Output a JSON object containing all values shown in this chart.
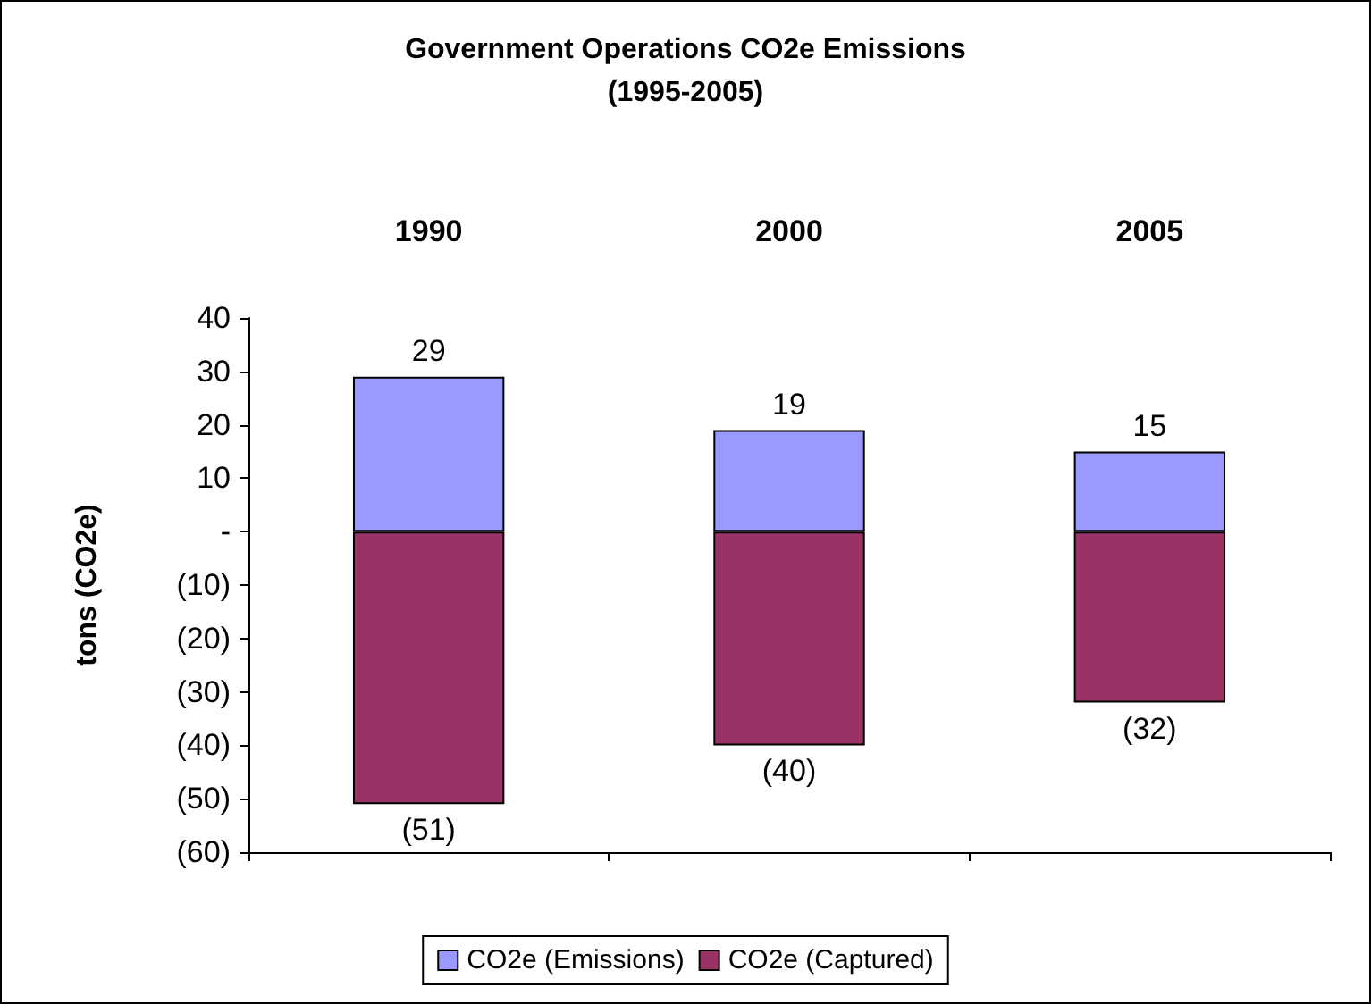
{
  "chart_data": {
    "type": "bar",
    "title": "Government Operations CO2e Emissions",
    "subtitle": "(1995-2005)",
    "ylabel": "tons (CO2e)",
    "categories": [
      "1990",
      "2000",
      "2005"
    ],
    "stacked": true,
    "series": [
      {
        "name": "CO2e (Emissions)",
        "color": "#9999ff",
        "values": [
          29,
          19,
          15
        ],
        "value_labels": [
          "29",
          "19",
          "15"
        ]
      },
      {
        "name": "CO2e (Captured)",
        "color": "#993366",
        "values": [
          -51,
          -40,
          -32
        ],
        "value_labels": [
          "(51)",
          "(40)",
          "(32)"
        ]
      }
    ],
    "ylim": [
      -60,
      40
    ],
    "yticks": [
      {
        "value": 40,
        "label": "40"
      },
      {
        "value": 30,
        "label": "30"
      },
      {
        "value": 20,
        "label": "20"
      },
      {
        "value": 10,
        "label": "10"
      },
      {
        "value": 0,
        "label": "-"
      },
      {
        "value": -10,
        "label": "(10)"
      },
      {
        "value": -20,
        "label": "(20)"
      },
      {
        "value": -30,
        "label": "(30)"
      },
      {
        "value": -40,
        "label": "(40)"
      },
      {
        "value": -50,
        "label": "(50)"
      },
      {
        "value": -60,
        "label": "(60)"
      }
    ],
    "grid": false,
    "legend": "bottom"
  }
}
